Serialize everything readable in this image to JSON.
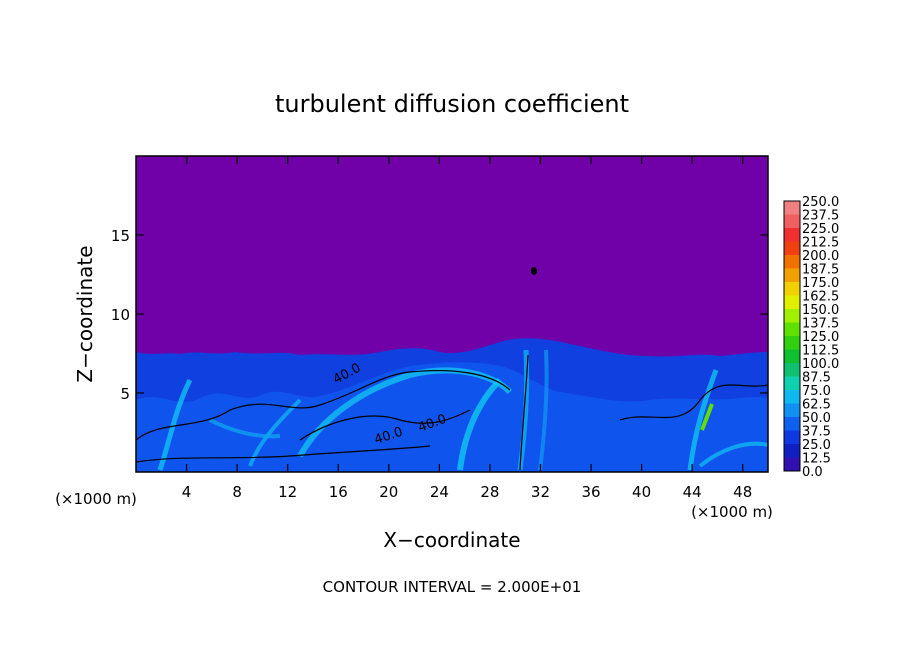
{
  "chart_data": {
    "type": "heatmap",
    "title": "turbulent diffusion coefficient",
    "xlabel": "X−coordinate",
    "ylabel": "Z−coordinate",
    "x_unit_left": "(×1000 m)",
    "x_unit_right": "(×1000 m)",
    "xlim": [
      0,
      50
    ],
    "ylim": [
      0,
      20
    ],
    "x_ticks": [
      4,
      8,
      12,
      16,
      20,
      24,
      28,
      32,
      36,
      40,
      44,
      48
    ],
    "y_ticks": [
      5,
      10,
      15
    ],
    "colorbar": {
      "labels": [
        "250.0",
        "237.5",
        "225.0",
        "212.5",
        "200.0",
        "187.5",
        "175.0",
        "162.5",
        "150.0",
        "137.5",
        "125.0",
        "112.5",
        "100.0",
        "87.5",
        "75.0",
        "62.5",
        "50.0",
        "37.5",
        "25.0",
        "12.5",
        "0.0"
      ],
      "colors": [
        "#f08080",
        "#f06060",
        "#f03030",
        "#f04010",
        "#f07000",
        "#f0a000",
        "#f0d000",
        "#e0f000",
        "#a0f000",
        "#60e000",
        "#30d010",
        "#10c030",
        "#10c070",
        "#10d0b0",
        "#10b8f0",
        "#1090f0",
        "#1060f0",
        "#1038e0",
        "#1020c0",
        "#3010b0",
        "#7000a8"
      ]
    },
    "contour_labels": [
      "40.0",
      "40.0",
      "40.0"
    ],
    "contour_interval_text": "CONTOUR INTERVAL = 2.000E+01",
    "background_value_color": "#7000a8"
  }
}
